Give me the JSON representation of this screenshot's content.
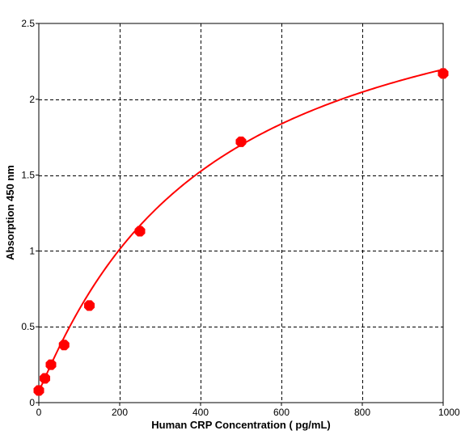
{
  "chart_data": {
    "type": "scatter",
    "title": "",
    "xlabel": "Human CRP Concentration ( pg/mL)",
    "ylabel": "Absorption 450 nm",
    "xlim": [
      0,
      1000
    ],
    "ylim": [
      0,
      2.5
    ],
    "x_ticks": [
      "0",
      "200",
      "400",
      "600",
      "800",
      "1000"
    ],
    "y_ticks": [
      "0",
      "0.5",
      "1",
      "1.5",
      "2",
      "2.5"
    ],
    "x_tick_values": [
      0,
      200,
      400,
      600,
      800,
      1000
    ],
    "y_tick_values": [
      0,
      0.5,
      1,
      1.5,
      2,
      2.5
    ],
    "grid": true,
    "grid_style": "dashed",
    "legend": "none",
    "color": "#ff0000",
    "series": [
      {
        "points": [
          {
            "x": 0,
            "y": 0.08
          },
          {
            "x": 15,
            "y": 0.16
          },
          {
            "x": 30,
            "y": 0.25
          },
          {
            "x": 62.5,
            "y": 0.38
          },
          {
            "x": 125,
            "y": 0.64
          },
          {
            "x": 250,
            "y": 1.13
          },
          {
            "x": 500,
            "y": 1.72
          },
          {
            "x": 1000,
            "y": 2.17
          }
        ],
        "fit": "smooth curve"
      }
    ]
  }
}
